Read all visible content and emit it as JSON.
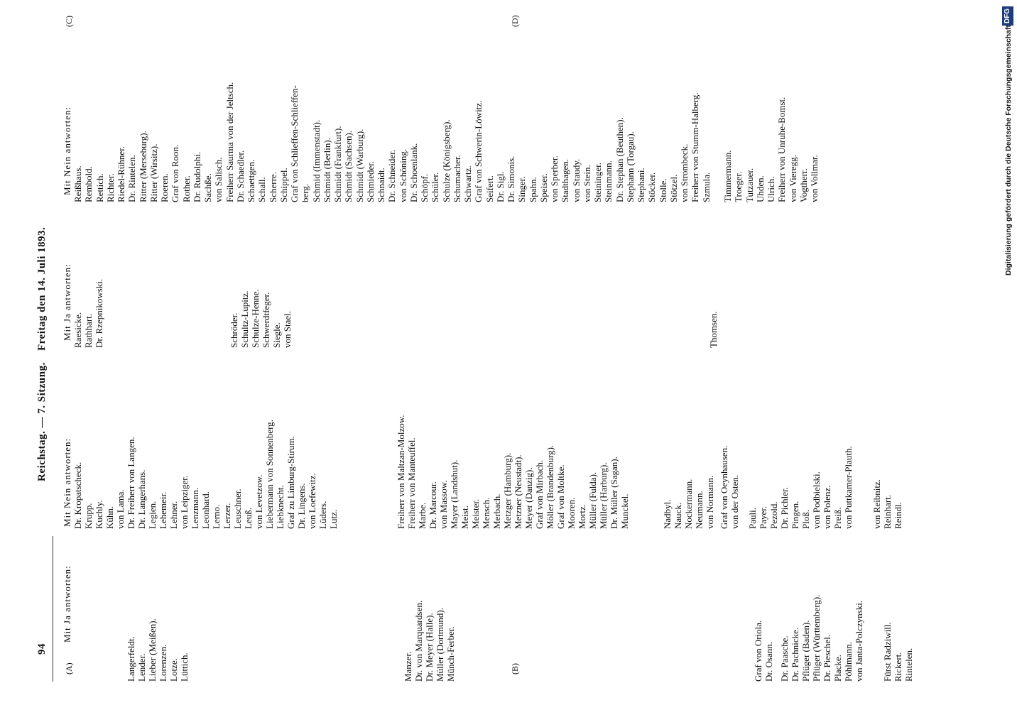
{
  "header": {
    "page_number": "94",
    "title_left": "Reichstag. — 7. Sitzung.",
    "title_right": "Freitag den 14. Juli 1893."
  },
  "margin_marks": [
    "(A)",
    "(B)",
    "(C)",
    "(D)"
  ],
  "columns": [
    {
      "heading": "Mit Ja antworten:",
      "groups": [
        [
          "Langerfeldt.",
          "Lender.",
          "Lieber (Meißen).",
          "Lorenzen.",
          "Lotze.",
          "Lüttich."
        ],
        [
          "Manzer.",
          "Dr. von Marquardsen.",
          "Dr. Meyer (Halle).",
          "Müller (Dortmund).",
          "Münch-Ferber."
        ],
        [
          "Graf von Oriola.",
          "Dr. Osann."
        ],
        [
          "Dr. Paasche.",
          "Dr. Pachnicke.",
          "Pflüger (Baden).",
          "Pflüger (Württemberg).",
          "Dr. Pieschel.",
          "Placke.",
          "Pöhlmann.",
          "von Janta-Polczynski."
        ],
        [
          "Fürst Radziwill.",
          "Rickert.",
          "Rintelen."
        ]
      ]
    },
    {
      "heading": "Mit Nein antworten:",
      "groups": [
        [
          "Dr. Kropatscheck.",
          "Krupp.",
          "Kuchly.",
          "Kühn.",
          "von Lama.",
          "Dr. Freiherr von Langen.",
          "Dr. Langerhans.",
          "Legien.",
          "Lehemeir.",
          "Lehner.",
          "von Leipziger.",
          "Lenzmann.",
          "Leonhard.",
          "Lerno.",
          "Lerzer.",
          "Leuschner.",
          "Leuß.",
          "von Levetzow.",
          "Liebermann von Sonnenberg.",
          "Liebknecht.",
          "Graf zu Limburg-Stirum.",
          "Dr. Lingens.",
          "von Loefewitz.",
          "Lüders.",
          "Lutz."
        ],
        [
          "Freiherr von Maltzan-Molzow.",
          "Freiherr von Manteuffel.",
          "Marbe.",
          "Dr. Marcour.",
          "von Massow.",
          "Mayer (Landshut).",
          "Meist.",
          "Meister.",
          "Mensch.",
          "Merbach.",
          "Metzger (Hamburg).",
          "Metzner (Neustadt).",
          "Meyer (Danzig).",
          "Graf von Mirbach.",
          "Möller (Brandenburg).",
          "Graf von Moltke.",
          "Mooren.",
          "Mortz.",
          "Müller (Fulda).",
          "Müller (Harburg).",
          "Dr. Müller (Sagan).",
          "Munckel."
        ],
        [
          "Nadbyl.",
          "Nauck.",
          "Nockermann.",
          "Neumann.",
          "von Normann."
        ],
        [
          "Graf von Oeynhausen.",
          "von der Osten."
        ],
        [
          "Pauli.",
          "Payer.",
          "Pezold.",
          "Dr. Pichler.",
          "Pingen.",
          "Ploß.",
          "von Podbielski.",
          "von Polenz.",
          "Preiß.",
          "von Puttkamer-Plauth."
        ],
        [
          "von Reibnitz.",
          "Reinhart.",
          "Reindl."
        ]
      ]
    },
    {
      "heading": "Mit Ja antworten:",
      "groups": [
        [
          "Raesicke.",
          "Rathhart.",
          "Dr. Rzepnikowski."
        ],
        [
          "Schröder.",
          "Schultz-Lupitz.",
          "Schulze-Henne.",
          "Schwerdtfeger.",
          "Siegle.",
          "von Stael."
        ],
        [
          "Thomsen."
        ]
      ]
    },
    {
      "heading": "Mit Nein antworten:",
      "groups": [
        [
          "Reißhaus.",
          "Rembold.",
          "Rettich.",
          "Richter.",
          "Riedel-Rühner.",
          "Dr. Rintelen.",
          "Ritter (Merseburg).",
          "Ritter (Wirsitz).",
          "Roeren.",
          "Graf von Roon.",
          "Rother.",
          "Dr. Rudolphi.",
          "Sachße.",
          "von Salisch.",
          "Freiherr Saurma von der Jeltsch.",
          "Dr. Schaedler.",
          "Schaettgen.",
          "Schall.",
          "Scherre.",
          "Schippel.",
          "Graf von Schlieffen-Schlieffen-",
          "berg.",
          "Schmid (Immenstadt).",
          "Schmidt (Berlin).",
          "Schmidt (Frankfurt).",
          "Schmidt (Sachsen).",
          "Schmidt (Warburg).",
          "Schmieder.",
          "Schnaidt.",
          "Dr. Schneider.",
          "von Schöning.",
          "Dr. Schoenlank.",
          "Schöpf.",
          "Schüler.",
          "Schulze (Königsberg).",
          "Schumacher.",
          "Schwartz.",
          "Graf von Schwerin-Löwitz.",
          "Seifert.",
          "Dr. Sigl.",
          "Dr. Simonis.",
          "Singer.",
          "Spahn.",
          "Speiser.",
          "von Sperber.",
          "Stadthagen.",
          "von Staudy.",
          "von Stein.",
          "Steininger.",
          "Steinmann.",
          "Dr. Stephan (Beuthen).",
          "Stephann (Torgau).",
          "Stephani.",
          "Stöcker.",
          "Stolle.",
          "Stötzel.",
          "von Strombeck.",
          "Freiherr von Stumm-Halberg.",
          "Szmula."
        ],
        [
          "Timmermann.",
          "Troeger.",
          "Tutzauer.",
          "Uhden.",
          "Ulrich.",
          "Freiherr von Unruhe-Bomst.",
          "von Vieregg.",
          "Vogtherr.",
          "von Vollmar."
        ]
      ]
    }
  ],
  "footer": {
    "funding": "Digitalisierung gefördert durch die Deutsche Forschungsgemeinschaft",
    "logo": "DFG"
  }
}
